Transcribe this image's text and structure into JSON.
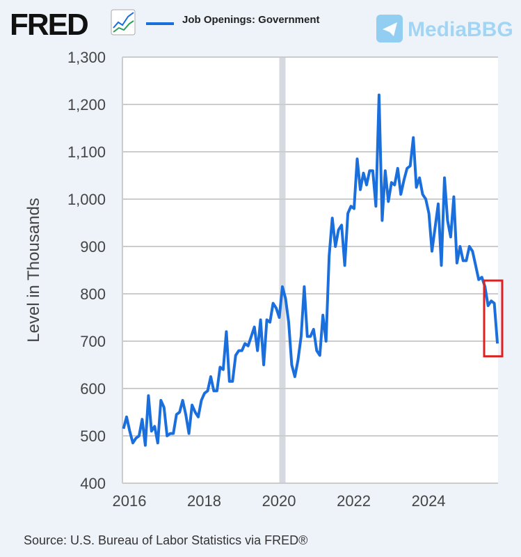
{
  "header": {
    "logo_text": "FRED",
    "legend_label": "Job Openings: Government",
    "watermark": "MediaBBG"
  },
  "footer": {
    "source": "Source: U.S. Bureau of Labor Statistics via FRED®"
  },
  "colors": {
    "line": "#1a6fdc",
    "highlight_box": "#e02020",
    "recession": "#d6d9e0",
    "grid": "#cccccc"
  },
  "chart_data": {
    "type": "line",
    "title": "Job Openings: Government",
    "xlabel": "",
    "ylabel": "Level in Thousands",
    "ylim": [
      400,
      1300
    ],
    "yticks": [
      "400",
      "500",
      "600",
      "700",
      "800",
      "900",
      "1,000",
      "1,100",
      "1,200",
      "1,300"
    ],
    "ytick_values": [
      400,
      500,
      600,
      700,
      800,
      900,
      1000,
      1100,
      1200,
      1300
    ],
    "xticks": [
      "2016",
      "2018",
      "2020",
      "2022",
      "2024"
    ],
    "start": "2015-12",
    "frequency": "monthly",
    "recession": [
      "2020-02",
      "2020-04"
    ],
    "highlight": [
      "2025-06",
      "2025-10"
    ],
    "series": [
      {
        "name": "Job Openings: Government",
        "values": [
          515,
          540,
          510,
          485,
          495,
          500,
          535,
          480,
          585,
          510,
          520,
          485,
          575,
          560,
          500,
          505,
          505,
          545,
          550,
          575,
          545,
          505,
          565,
          550,
          540,
          575,
          590,
          595,
          625,
          595,
          595,
          645,
          640,
          720,
          615,
          615,
          670,
          680,
          680,
          695,
          690,
          710,
          730,
          680,
          745,
          650,
          745,
          740,
          780,
          770,
          750,
          815,
          790,
          740,
          650,
          625,
          660,
          710,
          815,
          710,
          710,
          725,
          680,
          670,
          755,
          700,
          880,
          960,
          900,
          935,
          945,
          860,
          970,
          985,
          980,
          1085,
          1020,
          1055,
          1030,
          1060,
          1060,
          985,
          1220,
          955,
          1060,
          995,
          1035,
          1030,
          1065,
          1010,
          1040,
          1065,
          1070,
          1130,
          1025,
          1045,
          1010,
          1000,
          970,
          890,
          940,
          990,
          860,
          1045,
          955,
          920,
          1005,
          865,
          900,
          870,
          870,
          900,
          890,
          860,
          830,
          835,
          815,
          775,
          785,
          780,
          695
        ]
      }
    ]
  }
}
